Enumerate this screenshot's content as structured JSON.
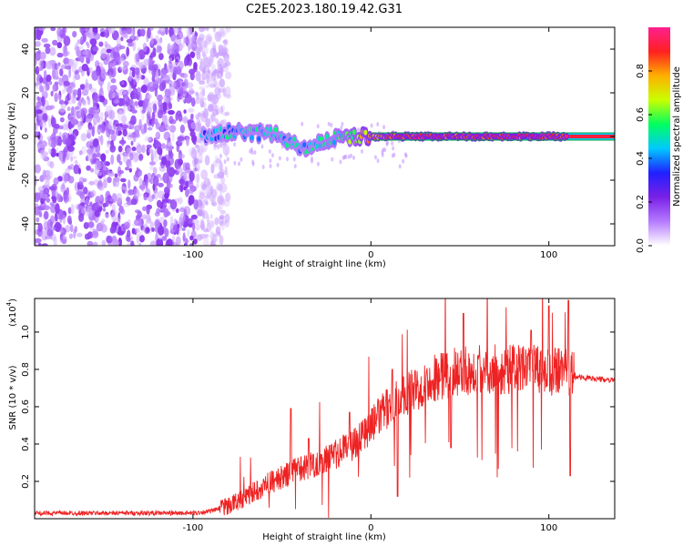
{
  "title": "C2E5.2023.180.19.42.G31",
  "colors": {
    "background": "#ffffff",
    "axis": "#000000",
    "snr_line": "#ee2222",
    "fit_line": "#00aa44",
    "low_amplitude": "#7a20e6"
  },
  "chart_data": [
    {
      "type": "heatmap",
      "description": "",
      "xlabel": "Height of straight line (km)",
      "ylabel": "Frequency (Hz)",
      "xlim": [
        -189,
        137
      ],
      "ylim": [
        -50,
        50
      ],
      "x_ticks": [
        -100,
        0,
        100
      ],
      "y_ticks": [
        -40,
        -20,
        0,
        20,
        40
      ],
      "grid": false,
      "colorbar": {
        "label": "Normalized spectral amplitude",
        "range": [
          0,
          1
        ],
        "ticks": [
          "0.0",
          "0.2",
          "0.4",
          "0.6",
          "0.8"
        ],
        "colormap": [
          "#ffffff",
          "#b57bff",
          "#7a20e6",
          "#2020ff",
          "#00c8ff",
          "#00ff60",
          "#c8ff00",
          "#ffb000",
          "#ff2020",
          "#ff2090"
        ]
      },
      "noise_region_x": [
        -189,
        -88
      ],
      "signal_track": [
        {
          "x": -95,
          "y": 0,
          "amp": 0.35
        },
        {
          "x": -90,
          "y": 1,
          "amp": 0.4
        },
        {
          "x": -85,
          "y": 1,
          "amp": 0.4
        },
        {
          "x": -80,
          "y": 2,
          "amp": 0.45
        },
        {
          "x": -75,
          "y": 2,
          "amp": 0.45
        },
        {
          "x": -70,
          "y": 1,
          "amp": 0.45
        },
        {
          "x": -65,
          "y": 1,
          "amp": 0.45
        },
        {
          "x": -60,
          "y": 2,
          "amp": 0.45
        },
        {
          "x": -55,
          "y": 1,
          "amp": 0.45
        },
        {
          "x": -50,
          "y": 0,
          "amp": 0.45
        },
        {
          "x": -45,
          "y": -3,
          "amp": 0.45
        },
        {
          "x": -40,
          "y": -5,
          "amp": 0.45
        },
        {
          "x": -35,
          "y": -5,
          "amp": 0.45
        },
        {
          "x": -30,
          "y": -3,
          "amp": 0.45
        },
        {
          "x": -25,
          "y": -2,
          "amp": 0.5
        },
        {
          "x": -20,
          "y": -1,
          "amp": 0.5
        },
        {
          "x": -15,
          "y": 0,
          "amp": 0.55
        },
        {
          "x": -10,
          "y": 0,
          "amp": 0.6
        },
        {
          "x": -5,
          "y": 0,
          "amp": 0.7
        },
        {
          "x": 0,
          "y": 0,
          "amp": 0.8
        },
        {
          "x": 10,
          "y": 0,
          "amp": 0.85
        },
        {
          "x": 20,
          "y": 0,
          "amp": 0.9
        },
        {
          "x": 40,
          "y": 0,
          "amp": 0.9
        },
        {
          "x": 60,
          "y": 0,
          "amp": 0.9
        },
        {
          "x": 80,
          "y": 0,
          "amp": 0.9
        },
        {
          "x": 100,
          "y": 0,
          "amp": 0.9
        },
        {
          "x": 110,
          "y": 0,
          "amp": 0.9
        }
      ],
      "band_x_range": [
        0,
        137
      ],
      "band_y": 0
    },
    {
      "type": "line",
      "description": "",
      "xlabel": "Height of straight line (km)",
      "ylabel": "SNR (10 * v/v)",
      "y_multiplier_label": "(x10",
      "y_multiplier_exp": "4",
      "y_multiplier_close": ")",
      "xlim": [
        -189,
        137
      ],
      "ylim": [
        0,
        1.18
      ],
      "x_ticks": [
        -100,
        0,
        100
      ],
      "y_ticks": [
        "0.2",
        "0.4",
        "0.6",
        "0.8",
        "1.0"
      ],
      "grid": false,
      "series": [
        {
          "name": "",
          "envelope_x": [
            -189,
            -100,
            -90,
            -80,
            -70,
            -60,
            -50,
            -40,
            -30,
            -20,
            -10,
            0,
            10,
            20,
            30,
            40,
            50,
            60,
            70,
            80,
            90,
            100,
            110,
            115,
            137
          ],
          "envelope_y": [
            0.03,
            0.03,
            0.04,
            0.07,
            0.12,
            0.18,
            0.22,
            0.27,
            0.3,
            0.34,
            0.4,
            0.5,
            0.6,
            0.66,
            0.73,
            0.77,
            0.79,
            0.8,
            0.8,
            0.8,
            0.8,
            0.79,
            0.78,
            0.76,
            0.74
          ],
          "peaks": [
            {
              "x": -45,
              "y": 0.59
            },
            {
              "x": -35,
              "y": 0.43
            },
            {
              "x": -12,
              "y": 0.57
            },
            {
              "x": 12,
              "y": 0.8
            },
            {
              "x": 15,
              "y": 0.12
            },
            {
              "x": 52,
              "y": 1.1
            },
            {
              "x": 45,
              "y": 0.38
            },
            {
              "x": 90,
              "y": 1.01
            },
            {
              "x": 100,
              "y": 1.14
            },
            {
              "x": 111,
              "y": 1.17
            },
            {
              "x": 112,
              "y": 0.23
            }
          ]
        }
      ]
    }
  ]
}
